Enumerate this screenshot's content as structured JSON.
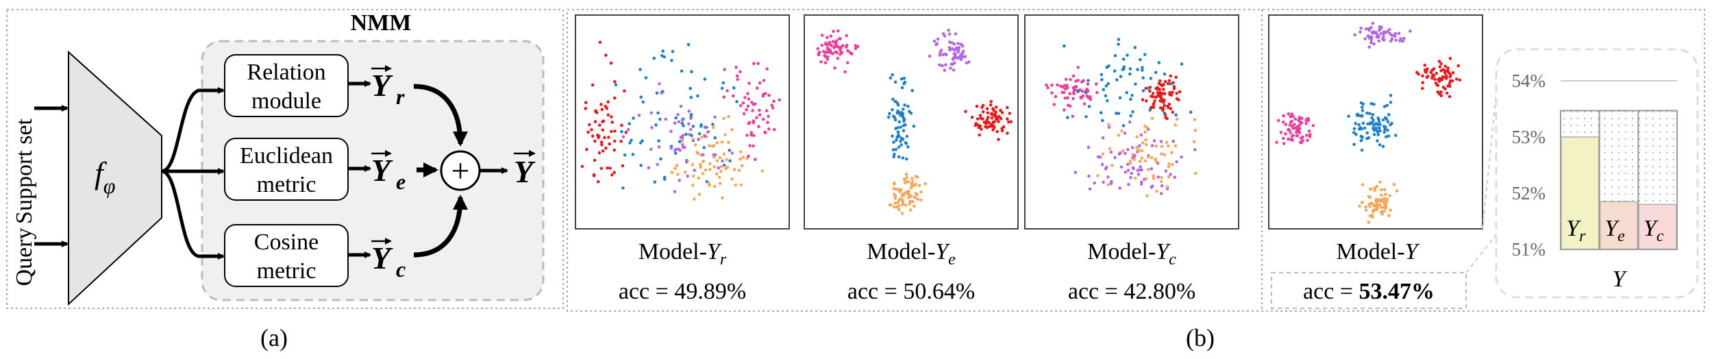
{
  "panel_a": {
    "caption": "(a)",
    "module_title": "NMM",
    "inputs": {
      "support": "Support set",
      "query": "Query"
    },
    "encoder": {
      "symbol": "f",
      "subscript": "φ"
    },
    "branches": [
      {
        "line1": "Relation",
        "line2": "module",
        "output": "Y",
        "output_sub": "r"
      },
      {
        "line1": "Euclidean",
        "line2": "metric",
        "output": "Y",
        "output_sub": "e"
      },
      {
        "line1": "Cosine",
        "line2": "metric",
        "output": "Y",
        "output_sub": "c"
      }
    ],
    "combine_symbol": "+",
    "final_output": "Y"
  },
  "panel_b": {
    "caption": "(b)",
    "plots": [
      {
        "model_prefix": "Model-",
        "model_var": "Y",
        "model_sub": "r",
        "acc_prefix": "acc = ",
        "acc_value": "49.89%"
      },
      {
        "model_prefix": "Model-",
        "model_var": "Y",
        "model_sub": "e",
        "acc_prefix": "acc = ",
        "acc_value": "50.64%"
      },
      {
        "model_prefix": "Model-",
        "model_var": "Y",
        "model_sub": "c",
        "acc_prefix": "acc = ",
        "acc_value": "42.80%"
      },
      {
        "model_prefix": "Model-",
        "model_var": "Y",
        "model_sub": "",
        "acc_prefix": "acc = ",
        "acc_value": "53.47%"
      }
    ]
  },
  "colors": {
    "class_red": "#e41a1c",
    "class_blue": "#1f7fc4",
    "class_orange": "#f5a65b",
    "class_purple": "#b366e0",
    "class_pink": "#e8409a",
    "nmm_fill": "#f0f0f0",
    "dash": "#bbbbbb"
  },
  "chart_data": {
    "type": "bar",
    "style": "stacked",
    "categories": [
      "Y"
    ],
    "xlabel": "Y",
    "yticks": [
      "51%",
      "52%",
      "53%",
      "54%"
    ],
    "ylim": [
      51,
      54
    ],
    "grid": false,
    "series": [
      {
        "name": "Y_r",
        "label_var": "Y",
        "label_sub": "r",
        "value": 53.0,
        "color": "#f2f2c4"
      },
      {
        "name": "Y_e",
        "label_var": "Y",
        "label_sub": "e",
        "value": 51.85,
        "color": "#f5dccf"
      },
      {
        "name": "Y_c",
        "label_var": "Y",
        "label_sub": "c",
        "value": 51.8,
        "color": "#f9d9d9"
      }
    ],
    "total": 53.47
  }
}
